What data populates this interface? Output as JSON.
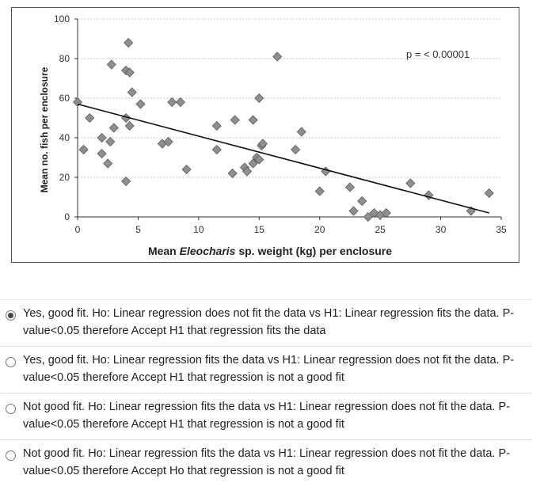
{
  "chart_data": {
    "type": "scatter",
    "xlabel_prefix": "Mean ",
    "xlabel_italic": "Eleocharis",
    "xlabel_suffix": " sp. weight (kg) per enclosure",
    "ylabel": "Mean no. fish per enclosure",
    "annotation": "p = < 0.00001",
    "xlim": [
      0,
      35
    ],
    "ylim": [
      0,
      100
    ],
    "xticks": [
      0,
      5,
      10,
      15,
      20,
      25,
      30,
      35
    ],
    "yticks": [
      0,
      20,
      40,
      60,
      80,
      100
    ],
    "grid": true,
    "marker_color": "#8f8f8f",
    "points": [
      [
        0,
        58
      ],
      [
        0.5,
        34
      ],
      [
        1,
        50
      ],
      [
        2,
        40
      ],
      [
        2,
        32
      ],
      [
        2.5,
        27
      ],
      [
        2.7,
        38
      ],
      [
        2.8,
        77
      ],
      [
        3,
        45
      ],
      [
        4,
        18
      ],
      [
        4,
        50
      ],
      [
        4,
        74
      ],
      [
        4.2,
        88
      ],
      [
        4.3,
        73
      ],
      [
        4.3,
        46
      ],
      [
        4.5,
        63
      ],
      [
        5.2,
        57
      ],
      [
        7,
        37
      ],
      [
        7.5,
        38
      ],
      [
        7.8,
        58
      ],
      [
        8.5,
        58
      ],
      [
        9,
        24
      ],
      [
        11.5,
        34
      ],
      [
        11.5,
        46
      ],
      [
        12.8,
        22
      ],
      [
        13,
        49
      ],
      [
        13.8,
        25
      ],
      [
        14,
        23
      ],
      [
        14.5,
        27
      ],
      [
        14.5,
        49
      ],
      [
        14.8,
        30
      ],
      [
        15,
        29
      ],
      [
        15,
        60
      ],
      [
        15.2,
        36
      ],
      [
        15.3,
        37
      ],
      [
        16.5,
        81
      ],
      [
        18,
        34
      ],
      [
        18.5,
        43
      ],
      [
        20,
        13
      ],
      [
        20.5,
        23
      ],
      [
        22.5,
        15
      ],
      [
        22.8,
        3
      ],
      [
        23.5,
        8
      ],
      [
        24,
        0
      ],
      [
        24.5,
        2
      ],
      [
        25,
        1
      ],
      [
        25.5,
        2
      ],
      [
        27.5,
        17
      ],
      [
        29,
        11
      ],
      [
        32.5,
        3
      ],
      [
        34,
        12
      ]
    ],
    "trendline": {
      "x": [
        0,
        34
      ],
      "y": [
        57,
        2
      ]
    }
  },
  "options": [
    {
      "text": "Yes, good fit. Ho: Linear regression does not fit the data vs H1: Linear regression fits the data. P-value<0.05 therefore Accept H1 that regression fits the data",
      "selected": true
    },
    {
      "text": "Yes, good fit. Ho: Linear regression fits the data vs H1: Linear regression does not fit the data. P-value<0.05 therefore Accept H1 that regression is not a good fit",
      "selected": false
    },
    {
      "text": "Not good fit. Ho: Linear regression fits the data vs H1: Linear regression does not fit the data. P-value<0.05 therefore Accept H1 that regression is not a good fit",
      "selected": false
    },
    {
      "text": "Not good fit. Ho: Linear regression fits the data vs H1: Linear regression does not fit the data. P-value<0.05 therefore Accept Ho that regression is not a good fit",
      "selected": false
    }
  ]
}
